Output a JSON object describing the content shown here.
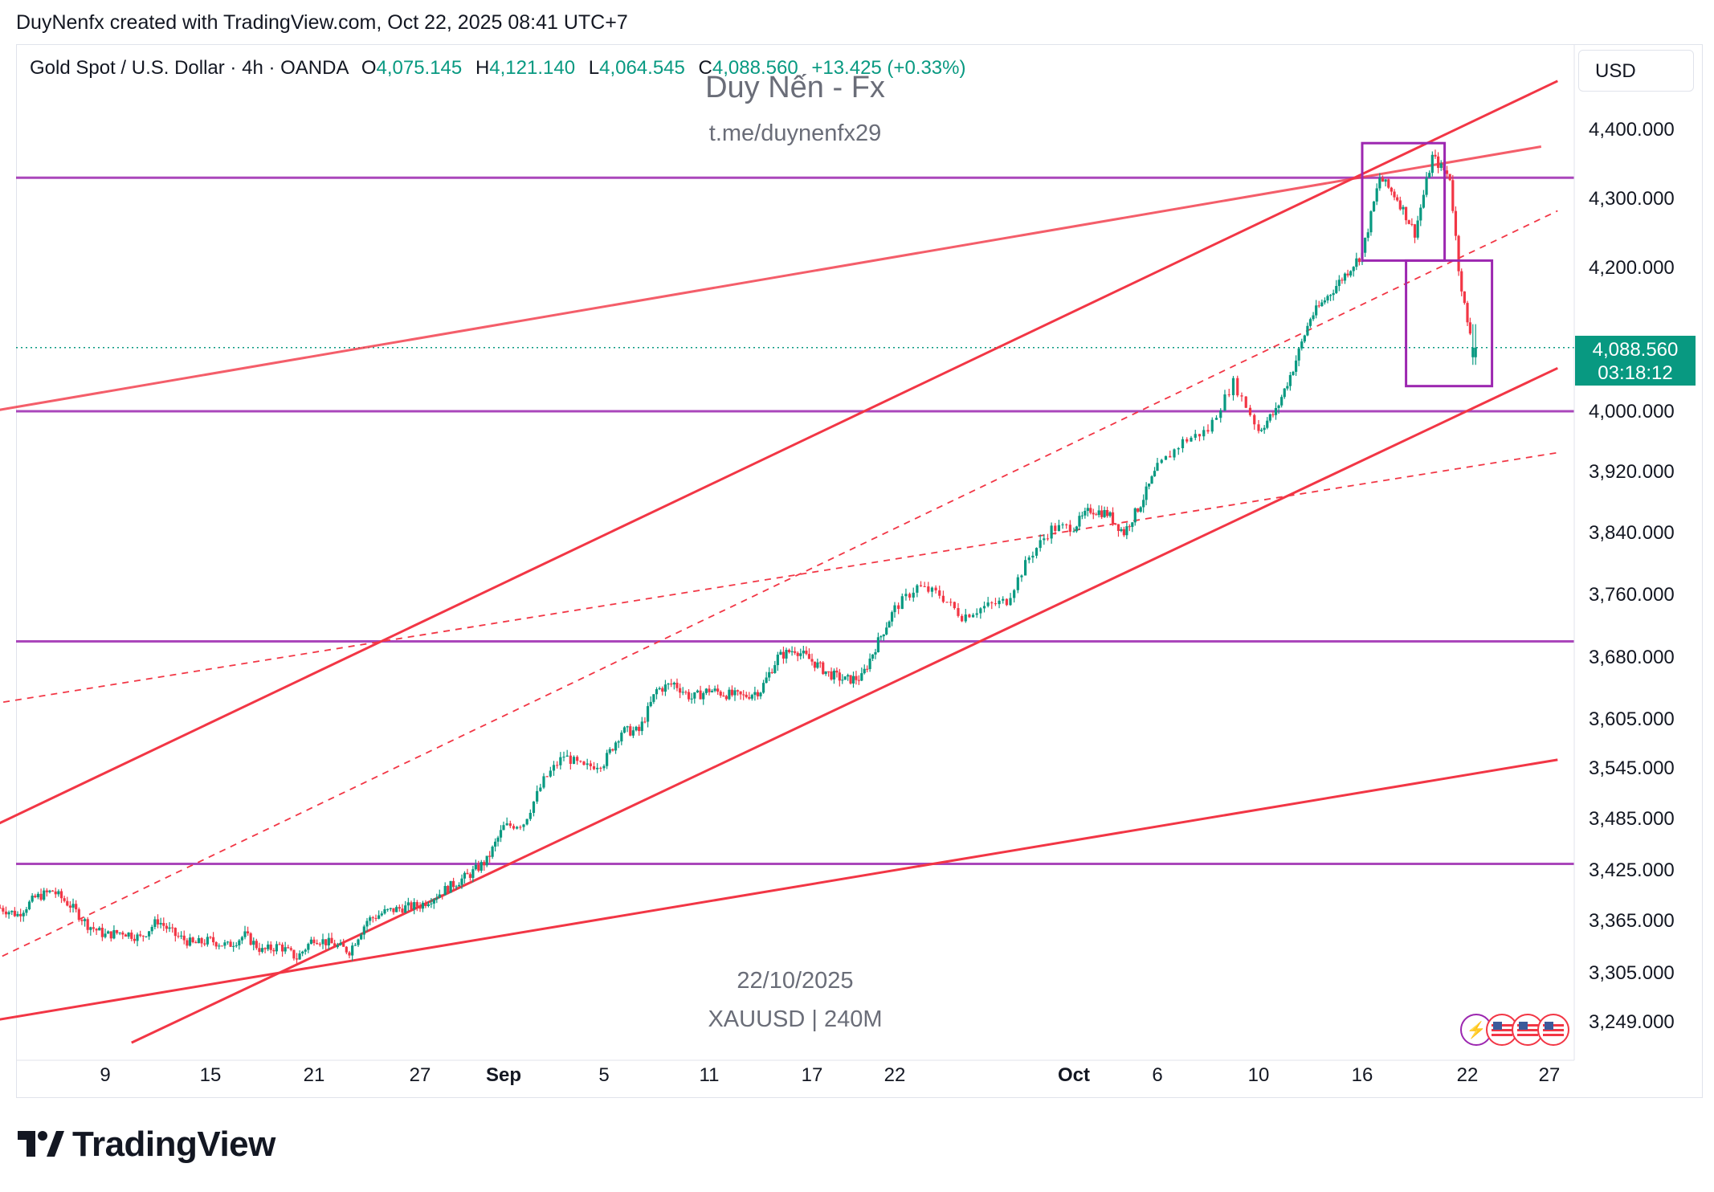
{
  "header": {
    "created_line": "DuyNenfx created with TradingView.com, Oct 22, 2025 08:41 UTC+7"
  },
  "legend": {
    "symbol_line": "Gold Spot / U.S. Dollar · 4h · OANDA",
    "o_label": "O",
    "o_value": "4,075.145",
    "h_label": "H",
    "h_value": "4,121.140",
    "l_label": "L",
    "l_value": "4,064.545",
    "c_label": "C",
    "c_value": "4,088.560",
    "change": "+13.425 (+0.33%)"
  },
  "watermark": {
    "title": "Duy Nến - Fx",
    "subtitle": "t.me/duynenfx29",
    "date": "22/10/2025",
    "symbol": "XAUUSD | 240M"
  },
  "price_axis": {
    "currency_button": "USD",
    "current_price": "4,088.560",
    "countdown": "03:18:12",
    "current_price_color": "#089981"
  },
  "footer": {
    "brand": "TradingView"
  },
  "chart_data": {
    "type": "candlestick",
    "symbol": "XAUUSD",
    "timeframe": "4h",
    "colors": {
      "up": "#089981",
      "down": "#f23645",
      "horizontal_levels": "#9c27b0",
      "trendlines": "#f23645"
    },
    "y_ticks": [
      4400,
      4300,
      4200,
      4000,
      3920,
      3840,
      3760,
      3680,
      3605,
      3545,
      3485,
      3425,
      3365,
      3305,
      3249
    ],
    "y_tick_labels": [
      "4,400.000",
      "4,300.000",
      "4,200.000",
      "4,000.000",
      "3,920.000",
      "3,840.000",
      "3,760.000",
      "3,680.000",
      "3,605.000",
      "3,545.000",
      "3,485.000",
      "3,425.000",
      "3,365.000",
      "3,305.000",
      "3,249.000"
    ],
    "x_ticks": [
      {
        "label": "9",
        "day": 9
      },
      {
        "label": "15",
        "day": 15
      },
      {
        "label": "21",
        "day": 21
      },
      {
        "label": "27",
        "day": 27
      },
      {
        "label": "Sep",
        "day": 32,
        "bold": true
      },
      {
        "label": "5",
        "day": 37
      },
      {
        "label": "11",
        "day": 43
      },
      {
        "label": "17",
        "day": 49
      },
      {
        "label": "22",
        "day": 54
      },
      {
        "label": "Oct",
        "day": 62,
        "bold": true
      },
      {
        "label": "6",
        "day": 67
      },
      {
        "label": "10",
        "day": 71
      },
      {
        "label": "16",
        "day": 77
      },
      {
        "label": "22",
        "day": 83
      },
      {
        "label": "27",
        "day": 88
      }
    ],
    "close_path": [
      [
        3,
        3380
      ],
      [
        4,
        3372
      ],
      [
        5,
        3392
      ],
      [
        6,
        3400
      ],
      [
        7,
        3383
      ],
      [
        8,
        3360
      ],
      [
        9,
        3348
      ],
      [
        10,
        3352
      ],
      [
        11,
        3345
      ],
      [
        12,
        3365
      ],
      [
        13,
        3348
      ],
      [
        14,
        3338
      ],
      [
        15,
        3342
      ],
      [
        16,
        3336
      ],
      [
        17,
        3348
      ],
      [
        18,
        3330
      ],
      [
        19,
        3336
      ],
      [
        20,
        3322
      ],
      [
        21,
        3345
      ],
      [
        22,
        3338
      ],
      [
        23,
        3330
      ],
      [
        24,
        3365
      ],
      [
        25,
        3375
      ],
      [
        26,
        3380
      ],
      [
        27,
        3383
      ],
      [
        28,
        3395
      ],
      [
        29,
        3408
      ],
      [
        30,
        3420
      ],
      [
        31,
        3436
      ],
      [
        32,
        3475
      ],
      [
        33,
        3480
      ],
      [
        34,
        3530
      ],
      [
        35,
        3560
      ],
      [
        36,
        3545
      ],
      [
        37,
        3552
      ],
      [
        38,
        3590
      ],
      [
        39,
        3590
      ],
      [
        40,
        3640
      ],
      [
        41,
        3648
      ],
      [
        42,
        3630
      ],
      [
        43,
        3640
      ],
      [
        44,
        3635
      ],
      [
        45,
        3632
      ],
      [
        46,
        3640
      ],
      [
        47,
        3680
      ],
      [
        48,
        3690
      ],
      [
        49,
        3675
      ],
      [
        50,
        3660
      ],
      [
        51,
        3652
      ],
      [
        52,
        3655
      ],
      [
        53,
        3700
      ],
      [
        54,
        3742
      ],
      [
        55,
        3770
      ],
      [
        56,
        3760
      ],
      [
        57,
        3732
      ],
      [
        58,
        3744
      ],
      [
        59,
        3752
      ],
      [
        60,
        3808
      ],
      [
        61,
        3845
      ],
      [
        62,
        3848
      ],
      [
        63,
        3870
      ],
      [
        64,
        3865
      ],
      [
        65,
        3840
      ],
      [
        66,
        3878
      ],
      [
        67,
        3925
      ],
      [
        68,
        3960
      ],
      [
        69,
        3975
      ],
      [
        70,
        4040
      ],
      [
        71,
        3975
      ],
      [
        72,
        4000
      ],
      [
        73,
        4060
      ],
      [
        74,
        4130
      ],
      [
        75,
        4160
      ],
      [
        76,
        4190
      ],
      [
        77,
        4220
      ],
      [
        78,
        4330
      ],
      [
        79,
        4300
      ],
      [
        80,
        4250
      ],
      [
        81,
        4360
      ],
      [
        82,
        4330
      ],
      [
        82.5,
        4200
      ],
      [
        83,
        4120
      ],
      [
        83.5,
        4088.56
      ]
    ],
    "levels": [
      4330,
      4000,
      3700,
      3432
    ],
    "drawn_trendlines": "ascending channel, rising resistance from 4,000, dashed mid-channel lines",
    "price_boxes": "consolidation boxes around the top (Oct 17–21) and the drop (Oct 21–23)"
  }
}
